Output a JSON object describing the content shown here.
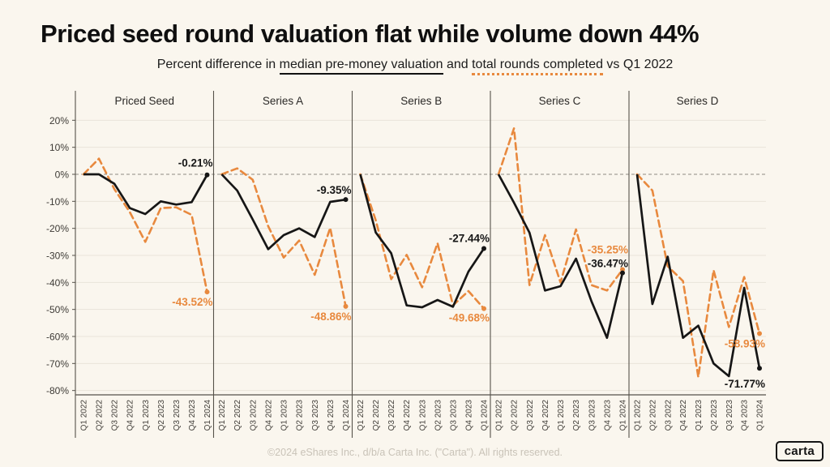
{
  "page": {
    "title": "Priced seed round valuation flat while volume down 44%",
    "subtitle": {
      "lead": "Percent difference in ",
      "valuation_label": "median pre-money valuation",
      "mid": " and ",
      "rounds_label": "total rounds completed",
      "tail": " vs Q1 2022"
    },
    "footer": "©2024 eShares Inc., d/b/a Carta Inc. (\"Carta\"). All rights reserved.",
    "logo": "carta"
  },
  "chart_data": {
    "type": "line",
    "title": "Priced seed round valuation flat while volume down 44%",
    "subtitle": "Percent difference in median pre-money valuation and total rounds completed vs Q1 2022",
    "legend": [
      {
        "name": "median pre-money valuation",
        "style": "solid",
        "color": "#161616"
      },
      {
        "name": "total rounds completed",
        "style": "dashed",
        "color": "#E8893E"
      }
    ],
    "y_axis": {
      "format": "percent",
      "min": -80,
      "max": 20,
      "ticks": [
        20,
        10,
        0,
        -10,
        -20,
        -30,
        -40,
        -50,
        -60,
        -70,
        -80
      ]
    },
    "x_categories": [
      "Q1 2022",
      "Q2 2022",
      "Q3 2022",
      "Q4 2022",
      "Q1 2023",
      "Q2 2023",
      "Q3 2023",
      "Q4 2023",
      "Q1 2024"
    ],
    "colors": {
      "black": "#161616",
      "orange": "#E8893E",
      "grid": "#E9E4DA",
      "zero_line": "#8F8B83",
      "axis": "#56524B",
      "tick_text": "#3E3B36",
      "panel_title": "#2B2927"
    },
    "panels": [
      {
        "id": "priced-seed",
        "label": "Priced Seed",
        "valuation": [
          0,
          0,
          -3.5,
          -12.5,
          -14.7,
          -10,
          -11.2,
          -10.3,
          -0.21
        ],
        "rounds": [
          0,
          5.8,
          -5.5,
          -14,
          -25,
          -12.5,
          -12.2,
          -15,
          -43.52
        ],
        "annotations": [
          {
            "series": "valuation",
            "text": "-0.21%",
            "dy": -10
          },
          {
            "series": "rounds",
            "text": "-43.52%",
            "dy": 17
          }
        ]
      },
      {
        "id": "series-a",
        "label": "Series A",
        "valuation": [
          0,
          -6,
          -16.7,
          -27.7,
          -22.5,
          -20,
          -23.2,
          -10.2,
          -9.35
        ],
        "rounds": [
          0,
          2.2,
          -2,
          -19.2,
          -30.8,
          -24.5,
          -37.2,
          -19.8,
          -48.86
        ],
        "annotations": [
          {
            "series": "valuation",
            "text": "-9.35%",
            "dy": -7
          },
          {
            "series": "rounds",
            "text": "-48.86%",
            "dy": 17
          }
        ]
      },
      {
        "id": "series-b",
        "label": "Series B",
        "valuation": [
          0,
          -21.5,
          -29.2,
          -48.5,
          -49.2,
          -46.5,
          -49,
          -36,
          -27.44
        ],
        "rounds": [
          0,
          -17,
          -38.8,
          -29.8,
          -41.8,
          -25.5,
          -48.5,
          -43.2,
          -49.68
        ],
        "annotations": [
          {
            "series": "valuation",
            "text": "-27.44%",
            "dy": -8
          },
          {
            "series": "rounds",
            "text": "-49.68%",
            "dy": 16
          }
        ]
      },
      {
        "id": "series-c",
        "label": "Series C",
        "valuation": [
          0,
          -10.5,
          -21.6,
          -43,
          -41.4,
          -31.2,
          -47,
          -60.5,
          -36.47
        ],
        "rounds": [
          0,
          17,
          -41,
          -22.5,
          -40,
          -20.4,
          -41,
          -43,
          -35.25
        ],
        "annotations": [
          {
            "series": "rounds",
            "text": "-35.25%",
            "dy": -20
          },
          {
            "series": "valuation",
            "text": "-36.47%",
            "dy": -7
          }
        ]
      },
      {
        "id": "series-d",
        "label": "Series D",
        "valuation": [
          0,
          -48,
          -30.5,
          -60.5,
          -56,
          -70,
          -74.7,
          -42,
          -71.77
        ],
        "rounds": [
          0,
          -6,
          -34,
          -39.5,
          -75,
          -35.5,
          -56.5,
          -38,
          -58.93
        ],
        "annotations": [
          {
            "series": "rounds",
            "text": "-58.93%",
            "dy": 17
          },
          {
            "series": "valuation",
            "text": "-71.77%",
            "dy": 24
          }
        ]
      }
    ]
  }
}
